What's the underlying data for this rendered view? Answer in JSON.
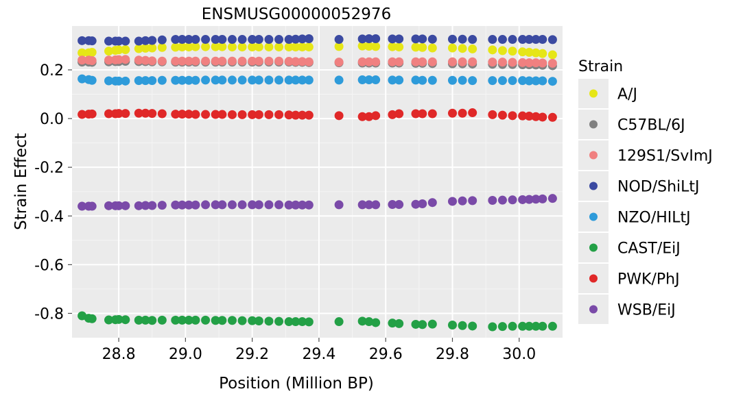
{
  "chart_data": {
    "type": "scatter",
    "title": "ENSMUSG00000052976",
    "xlabel": "Position (Million BP)",
    "ylabel": "Strain Effect",
    "xlim": [
      28.66,
      30.13
    ],
    "ylim": [
      -0.9,
      0.38
    ],
    "x_ticks": [
      28.8,
      29.0,
      29.2,
      29.4,
      29.6,
      29.8,
      30.0
    ],
    "x_tick_labels": [
      "28.8",
      "29.0",
      "29.2",
      "29.4",
      "29.6",
      "29.8",
      "30.0"
    ],
    "y_ticks": [
      0.2,
      0.0,
      -0.2,
      -0.4,
      -0.6,
      -0.8
    ],
    "y_tick_labels": [
      "0.2",
      "0.0",
      "-0.2",
      "-0.4",
      "-0.6",
      "-0.8"
    ],
    "grid": true,
    "panel_background": "#EBEBEB",
    "legend_title": "Strain",
    "legend_position": "right",
    "x": [
      28.69,
      28.71,
      28.72,
      28.77,
      28.79,
      28.8,
      28.82,
      28.86,
      28.88,
      28.9,
      28.93,
      28.97,
      28.99,
      29.01,
      29.03,
      29.06,
      29.09,
      29.11,
      29.14,
      29.17,
      29.2,
      29.22,
      29.25,
      29.28,
      29.31,
      29.33,
      29.35,
      29.37,
      29.46,
      29.53,
      29.55,
      29.57,
      29.62,
      29.64,
      29.69,
      29.71,
      29.74,
      29.8,
      29.83,
      29.86,
      29.92,
      29.95,
      29.98,
      30.01,
      30.03,
      30.05,
      30.07,
      30.1
    ],
    "series": [
      {
        "name": "A/J",
        "color": "#E6E617",
        "values": [
          0.27,
          0.27,
          0.272,
          0.277,
          0.28,
          0.282,
          0.283,
          0.287,
          0.289,
          0.29,
          0.292,
          0.293,
          0.294,
          0.294,
          0.295,
          0.295,
          0.295,
          0.295,
          0.294,
          0.294,
          0.294,
          0.294,
          0.294,
          0.294,
          0.294,
          0.294,
          0.294,
          0.294,
          0.296,
          0.298,
          0.297,
          0.296,
          0.295,
          0.294,
          0.293,
          0.292,
          0.29,
          0.29,
          0.288,
          0.286,
          0.282,
          0.279,
          0.277,
          0.274,
          0.272,
          0.27,
          0.267,
          0.262
        ]
      },
      {
        "name": "C57BL/6J",
        "color": "#808080",
        "values": [
          0.232,
          0.232,
          0.231,
          0.233,
          0.234,
          0.234,
          0.235,
          0.234,
          0.234,
          0.233,
          0.233,
          0.232,
          0.232,
          0.232,
          0.232,
          0.232,
          0.232,
          0.232,
          0.232,
          0.232,
          0.232,
          0.232,
          0.232,
          0.232,
          0.232,
          0.231,
          0.231,
          0.23,
          0.229,
          0.228,
          0.228,
          0.228,
          0.228,
          0.228,
          0.227,
          0.227,
          0.226,
          0.225,
          0.225,
          0.224,
          0.223,
          0.222,
          0.222,
          0.221,
          0.221,
          0.22,
          0.219,
          0.217
        ]
      },
      {
        "name": "129S1/SvImJ",
        "color": "#F08080",
        "values": [
          0.24,
          0.24,
          0.238,
          0.24,
          0.241,
          0.242,
          0.243,
          0.24,
          0.239,
          0.237,
          0.236,
          0.236,
          0.236,
          0.236,
          0.236,
          0.236,
          0.236,
          0.236,
          0.236,
          0.236,
          0.236,
          0.236,
          0.236,
          0.236,
          0.235,
          0.234,
          0.234,
          0.233,
          0.232,
          0.233,
          0.233,
          0.233,
          0.233,
          0.233,
          0.233,
          0.233,
          0.233,
          0.233,
          0.233,
          0.233,
          0.232,
          0.232,
          0.231,
          0.23,
          0.229,
          0.229,
          0.228,
          0.227
        ]
      },
      {
        "name": "NOD/ShiLtJ",
        "color": "#3B4AA1",
        "values": [
          0.32,
          0.32,
          0.319,
          0.318,
          0.318,
          0.318,
          0.318,
          0.318,
          0.32,
          0.321,
          0.323,
          0.325,
          0.325,
          0.325,
          0.325,
          0.325,
          0.325,
          0.325,
          0.325,
          0.325,
          0.325,
          0.325,
          0.325,
          0.325,
          0.325,
          0.326,
          0.327,
          0.328,
          0.325,
          0.327,
          0.328,
          0.328,
          0.327,
          0.327,
          0.327,
          0.327,
          0.326,
          0.326,
          0.326,
          0.325,
          0.325,
          0.325,
          0.325,
          0.325,
          0.325,
          0.325,
          0.325,
          0.324
        ]
      },
      {
        "name": "NZO/HILtJ",
        "color": "#2E9BDA",
        "values": [
          0.163,
          0.16,
          0.157,
          0.155,
          0.154,
          0.154,
          0.154,
          0.156,
          0.156,
          0.156,
          0.157,
          0.157,
          0.157,
          0.157,
          0.157,
          0.158,
          0.158,
          0.158,
          0.158,
          0.158,
          0.158,
          0.158,
          0.158,
          0.158,
          0.158,
          0.158,
          0.158,
          0.158,
          0.158,
          0.159,
          0.159,
          0.159,
          0.158,
          0.158,
          0.158,
          0.157,
          0.157,
          0.157,
          0.157,
          0.156,
          0.156,
          0.156,
          0.156,
          0.156,
          0.155,
          0.155,
          0.155,
          0.153
        ]
      },
      {
        "name": "CAST/EiJ",
        "color": "#23A046",
        "values": [
          -0.81,
          -0.82,
          -0.822,
          -0.827,
          -0.826,
          -0.825,
          -0.826,
          -0.828,
          -0.828,
          -0.829,
          -0.828,
          -0.828,
          -0.828,
          -0.828,
          -0.828,
          -0.828,
          -0.829,
          -0.829,
          -0.829,
          -0.83,
          -0.83,
          -0.831,
          -0.832,
          -0.833,
          -0.834,
          -0.834,
          -0.834,
          -0.835,
          -0.834,
          -0.832,
          -0.834,
          -0.838,
          -0.84,
          -0.842,
          -0.845,
          -0.846,
          -0.844,
          -0.848,
          -0.85,
          -0.852,
          -0.855,
          -0.854,
          -0.853,
          -0.853,
          -0.853,
          -0.853,
          -0.853,
          -0.853
        ]
      },
      {
        "name": "PWK/PhJ",
        "color": "#E02828",
        "values": [
          0.017,
          0.018,
          0.019,
          0.02,
          0.02,
          0.021,
          0.021,
          0.022,
          0.022,
          0.021,
          0.02,
          0.018,
          0.018,
          0.018,
          0.017,
          0.017,
          0.017,
          0.017,
          0.016,
          0.016,
          0.016,
          0.016,
          0.016,
          0.016,
          0.015,
          0.014,
          0.014,
          0.014,
          0.012,
          0.008,
          0.008,
          0.012,
          0.016,
          0.02,
          0.02,
          0.02,
          0.02,
          0.022,
          0.022,
          0.024,
          0.016,
          0.014,
          0.012,
          0.011,
          0.01,
          0.008,
          0.006,
          0.005
        ]
      },
      {
        "name": "WSB/EiJ",
        "color": "#7A4AA8",
        "values": [
          -0.36,
          -0.36,
          -0.36,
          -0.358,
          -0.358,
          -0.358,
          -0.358,
          -0.358,
          -0.357,
          -0.357,
          -0.356,
          -0.355,
          -0.355,
          -0.355,
          -0.355,
          -0.354,
          -0.354,
          -0.354,
          -0.354,
          -0.354,
          -0.354,
          -0.354,
          -0.354,
          -0.354,
          -0.355,
          -0.355,
          -0.355,
          -0.355,
          -0.354,
          -0.354,
          -0.354,
          -0.354,
          -0.353,
          -0.353,
          -0.352,
          -0.35,
          -0.345,
          -0.34,
          -0.338,
          -0.337,
          -0.336,
          -0.335,
          -0.334,
          -0.333,
          -0.332,
          -0.331,
          -0.33,
          -0.328
        ]
      }
    ]
  }
}
